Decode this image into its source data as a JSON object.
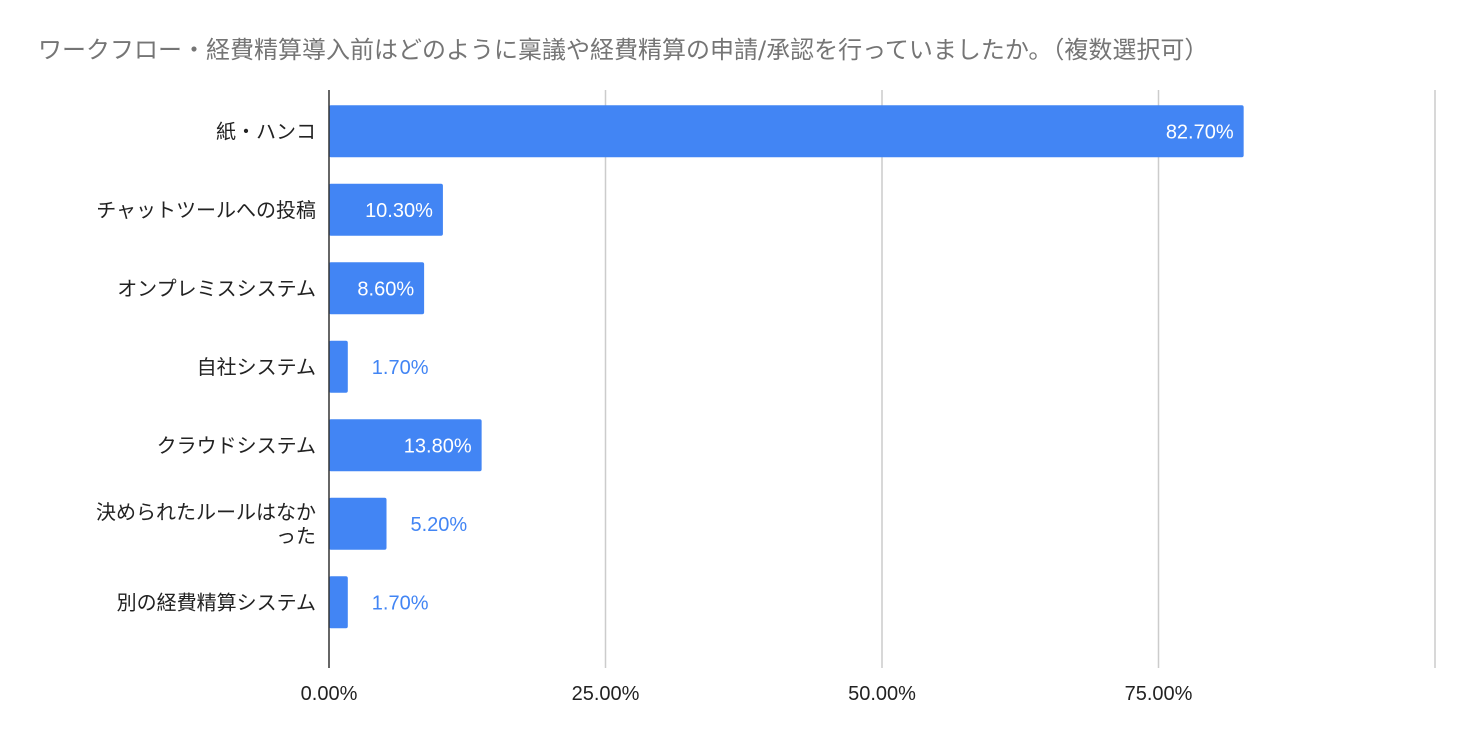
{
  "chart_data": {
    "type": "bar",
    "orientation": "horizontal",
    "title": "ワークフロー・経費精算導入前はどのように稟議や経費精算の申請/承認を行っていましたか。（複数選択可）",
    "categories": [
      "紙・ハンコ",
      "チャットツールへの投稿",
      "オンプレミスシステム",
      "自社システム",
      "クラウドシステム",
      "決められたルールはなかった",
      "別の経費精算システム"
    ],
    "category_lines": [
      [
        "紙・ハンコ"
      ],
      [
        "チャットツールへの投稿"
      ],
      [
        "オンプレミスシステム"
      ],
      [
        "自社システム"
      ],
      [
        "クラウドシステム"
      ],
      [
        "決められたルールはなか",
        "った"
      ],
      [
        "別の経費精算システム"
      ]
    ],
    "values": [
      82.7,
      10.3,
      8.6,
      1.7,
      13.8,
      5.2,
      1.7
    ],
    "value_labels": [
      "82.70%",
      "10.30%",
      "8.60%",
      "1.70%",
      "13.80%",
      "5.20%",
      "1.70%"
    ],
    "xlim": [
      0,
      100
    ],
    "x_ticks": [
      0,
      25,
      50,
      75
    ],
    "x_tick_labels": [
      "0.00%",
      "25.00%",
      "50.00%",
      "75.00%"
    ],
    "xlabel": "",
    "ylabel": "",
    "grid": true,
    "legend": "none",
    "colors": {
      "bar": "#4285f4",
      "label_inside": "#ffffff",
      "label_outside": "#4285f4",
      "grid": "#cccccc",
      "axis": "#333333",
      "title": "#757575",
      "text": "#222222"
    }
  }
}
